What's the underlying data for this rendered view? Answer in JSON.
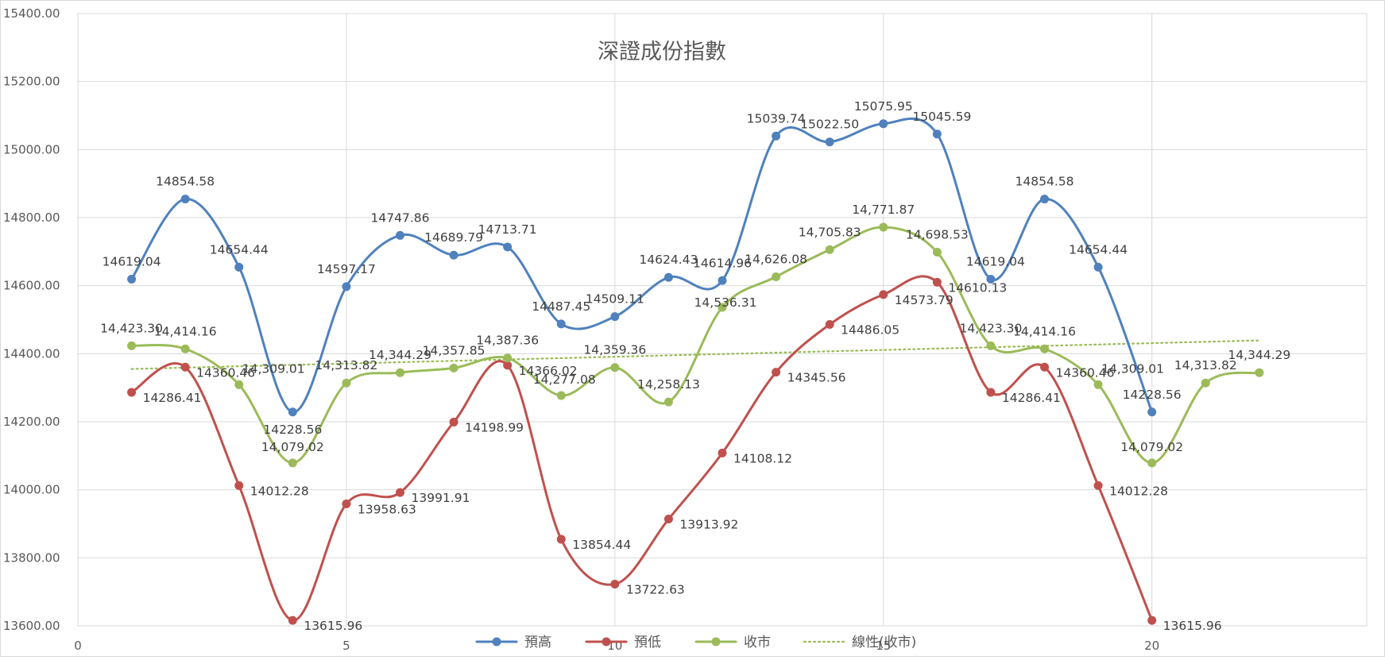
{
  "chart_data": {
    "type": "line",
    "title": "深證成份指數",
    "xlabel": "",
    "ylabel": "",
    "xlim": [
      0,
      24
    ],
    "ylim": [
      13600,
      15400
    ],
    "x_ticks": [
      "0",
      "5",
      "10",
      "15",
      "20"
    ],
    "x_tick_values": [
      0,
      5,
      10,
      15,
      20
    ],
    "y_ticks": [
      "13600.00",
      "13800.00",
      "14000.00",
      "14200.00",
      "14400.00",
      "14600.00",
      "14800.00",
      "15000.00",
      "15200.00",
      "15400.00"
    ],
    "y_tick_values": [
      13600,
      13800,
      14000,
      14200,
      14400,
      14600,
      14800,
      15000,
      15200,
      15400
    ],
    "grid": true,
    "legend_position": "bottom",
    "series": [
      {
        "name": "預高",
        "color": "#4f81bd",
        "x": [
          1,
          2,
          3,
          4,
          5,
          6,
          7,
          8,
          9,
          10,
          11,
          12,
          13,
          14,
          15,
          16,
          17,
          18,
          19,
          20
        ],
        "values": [
          14619.04,
          14854.58,
          14654.44,
          14228.56,
          14597.17,
          14747.86,
          14689.79,
          14713.71,
          14487.45,
          14509.11,
          14624.43,
          14614.96,
          15039.74,
          15022.5,
          15075.95,
          15045.59,
          14619.04,
          14854.58,
          14654.44,
          14228.56
        ],
        "labels": [
          "14619.04",
          "14854.58",
          "14654.44",
          "14228.56",
          "14597.17",
          "14747.86",
          "14689.79",
          "14713.71",
          "14487.45",
          "14509.11",
          "14624.43",
          "14614.96",
          "15039.74",
          "15022.50",
          "15075.95",
          "15045.59",
          "14619.04",
          "14854.58",
          "14654.44",
          "14228.56"
        ]
      },
      {
        "name": "預低",
        "color": "#c0504d",
        "x": [
          1,
          2,
          3,
          4,
          5,
          6,
          7,
          8,
          9,
          10,
          11,
          12,
          13,
          14,
          15,
          16,
          17,
          18,
          19,
          20
        ],
        "values": [
          14286.41,
          14360.46,
          14012.28,
          13615.96,
          13958.63,
          13991.91,
          14198.99,
          14366.02,
          13854.44,
          13722.63,
          13913.92,
          14108.12,
          14345.56,
          14486.05,
          14573.79,
          14610.13,
          14286.41,
          14360.46,
          14012.28,
          13615.96
        ],
        "labels": [
          "14286.41",
          "14360.46",
          "14012.28",
          "13615.96",
          "13958.63",
          "13991.91",
          "14198.99",
          "14366.02",
          "13854.44",
          "13722.63",
          "13913.92",
          "14108.12",
          "14345.56",
          "14486.05",
          "14573.79",
          "14610.13",
          "14286.41",
          "14360.46",
          "14012.28",
          "13615.96"
        ]
      },
      {
        "name": "收市",
        "color": "#9bbb59",
        "x": [
          1,
          2,
          3,
          4,
          5,
          6,
          7,
          8,
          9,
          10,
          11,
          12,
          13,
          14,
          15,
          16,
          17,
          18,
          19,
          20,
          21,
          22
        ],
        "values": [
          14423.3,
          14414.16,
          14309.01,
          14079.02,
          14313.82,
          14344.29,
          14357.85,
          14387.36,
          14277.08,
          14359.36,
          14258.13,
          14536.31,
          14626.08,
          14705.83,
          14771.87,
          14698.53,
          14423.3,
          14414.16,
          14309.01,
          14079.02,
          14313.82,
          14344.29
        ],
        "labels": [
          "14,423.30",
          "14,414.16",
          "14,309.01",
          "14,079.02",
          "14,313.82",
          "14,344.29",
          "14,357.85",
          "14,387.36",
          "14,277.08",
          "14,359.36",
          "14,258.13",
          "14,536.31",
          "14,626.08",
          "14,705.83",
          "14,771.87",
          "14,698.53",
          "14,423.30",
          "14,414.16",
          "14,309.01",
          "14,079.02",
          "14,313.82",
          "14,344.29"
        ]
      }
    ],
    "trendline": {
      "name": "線性(收市)",
      "color": "#9bbb59",
      "x": [
        1,
        22
      ],
      "values": [
        14355,
        14439
      ]
    }
  }
}
